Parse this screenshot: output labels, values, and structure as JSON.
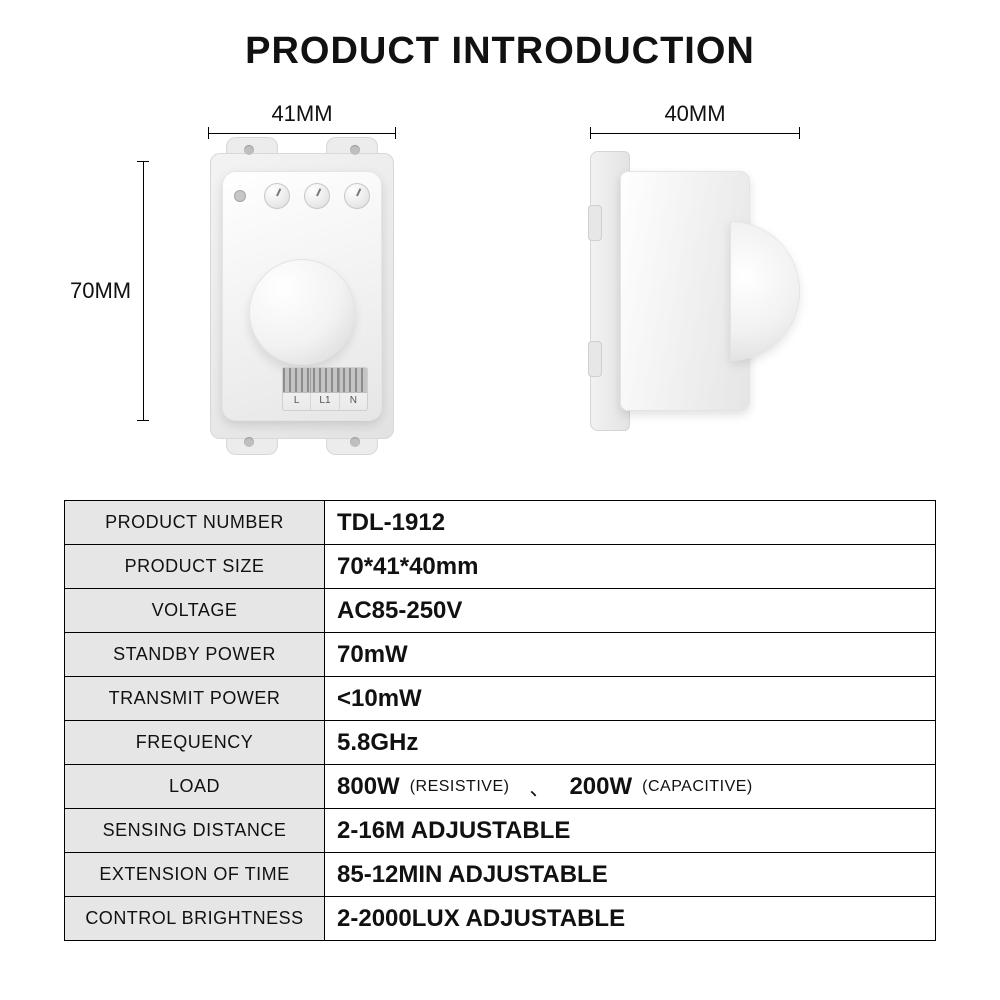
{
  "title": "PRODUCT INTRODUCTION",
  "dimensions": {
    "width_label": "41MM",
    "height_label": "70MM",
    "depth_label": "40MM"
  },
  "terminal_labels": [
    "L",
    "L1",
    "N"
  ],
  "spec_table": {
    "header_bg": "#e6e6e6",
    "border_color": "#000000",
    "rows": [
      {
        "label": "PRODUCT NUMBER",
        "value": "TDL-1912"
      },
      {
        "label": "PRODUCT SIZE",
        "value": "70*41*40mm"
      },
      {
        "label": "VOLTAGE",
        "value": "AC85-250V"
      },
      {
        "label": "STANDBY POWER",
        "value": "70mW"
      },
      {
        "label": "TRANSMIT POWER",
        "value": "<10mW"
      },
      {
        "label": "FREQUENCY",
        "value": "5.8GHz"
      },
      {
        "label": "LOAD",
        "value_parts": [
          {
            "text": "800W",
            "paren": "(RESISTIVE)"
          },
          {
            "sep": "、"
          },
          {
            "text": "200W",
            "paren": "(CAPACITIVE)"
          }
        ]
      },
      {
        "label": "SENSING DISTANCE",
        "value": "2-16M ADJUSTABLE"
      },
      {
        "label": "EXTENSION OF TIME",
        "value": "85-12MIN ADJUSTABLE"
      },
      {
        "label": "CONTROL BRIGHTNESS",
        "value": "2-2000LUX ADJUSTABLE"
      }
    ]
  },
  "colors": {
    "page_bg": "#ffffff",
    "text": "#111111",
    "device_light": "#ffffff",
    "device_shadow": "#e2e2e2"
  }
}
